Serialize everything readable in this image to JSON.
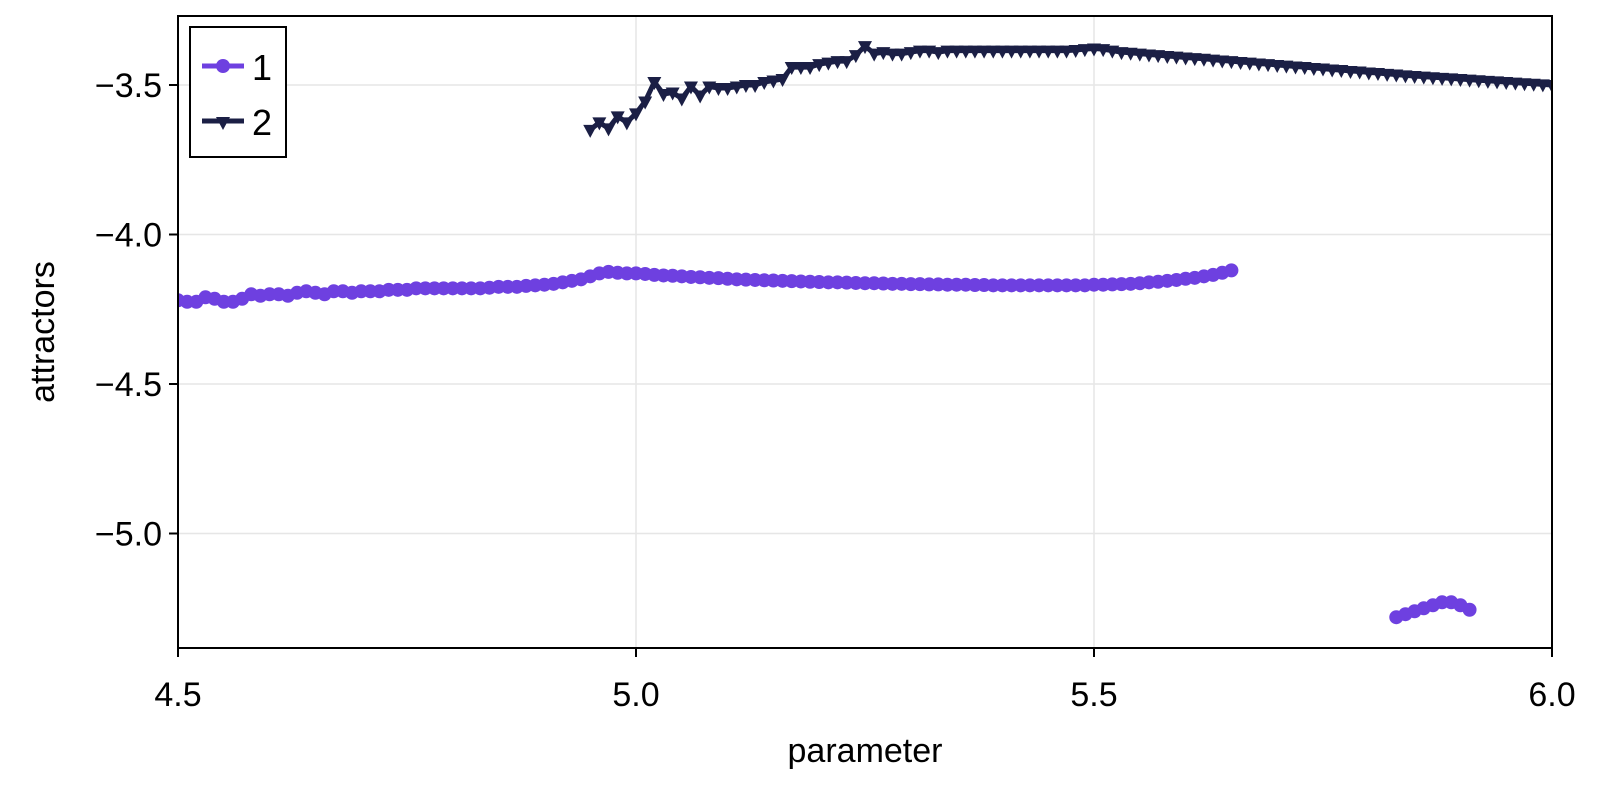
{
  "chart_data": {
    "type": "line",
    "title": "",
    "xlabel": "parameter",
    "ylabel": "attractors",
    "xlim": [
      4.5,
      6.0
    ],
    "ylim": [
      -5.38,
      -3.27
    ],
    "xticks": [
      4.5,
      5.0,
      5.5,
      6.0
    ],
    "xtick_labels": [
      "4.5",
      "5.0",
      "5.5",
      "6.0"
    ],
    "yticks": [
      -3.5,
      -4.0,
      -4.5,
      -5.0
    ],
    "ytick_labels": [
      "−3.5",
      "−4.0",
      "−4.5",
      "−5.0"
    ],
    "grid": true,
    "legend_position": "top-left",
    "series": [
      {
        "name": "1",
        "color": "#6e40e0",
        "marker": "circle",
        "segments": [
          {
            "x": [
              4.5,
              4.51,
              4.52,
              4.53,
              4.54,
              4.55,
              4.56,
              4.57,
              4.58,
              4.59,
              4.6,
              4.61,
              4.62,
              4.63,
              4.64,
              4.65,
              4.66,
              4.67,
              4.68,
              4.69,
              4.7,
              4.71,
              4.72,
              4.73,
              4.74,
              4.75,
              4.76,
              4.77,
              4.78,
              4.79,
              4.8,
              4.81,
              4.82,
              4.83,
              4.84,
              4.85,
              4.86,
              4.87,
              4.88,
              4.89,
              4.9,
              4.91,
              4.92,
              4.93,
              4.94,
              4.95,
              4.96,
              4.97,
              4.98,
              4.99,
              5.0,
              5.01,
              5.02,
              5.03,
              5.04,
              5.05,
              5.06,
              5.07,
              5.08,
              5.09,
              5.1,
              5.11,
              5.12,
              5.13,
              5.14,
              5.15,
              5.16,
              5.17,
              5.18,
              5.19,
              5.2,
              5.21,
              5.22,
              5.23,
              5.24,
              5.25,
              5.26,
              5.27,
              5.28,
              5.29,
              5.3,
              5.31,
              5.32,
              5.33,
              5.34,
              5.35,
              5.36,
              5.37,
              5.38,
              5.39,
              5.4,
              5.41,
              5.42,
              5.43,
              5.44,
              5.45,
              5.46,
              5.47,
              5.48,
              5.49,
              5.5,
              5.51,
              5.52,
              5.53,
              5.54,
              5.55,
              5.56,
              5.57,
              5.58,
              5.59,
              5.6,
              5.61,
              5.62,
              5.63,
              5.64,
              5.65
            ],
            "y": [
              -4.22,
              -4.225,
              -4.225,
              -4.21,
              -4.215,
              -4.225,
              -4.225,
              -4.215,
              -4.2,
              -4.205,
              -4.2,
              -4.2,
              -4.205,
              -4.195,
              -4.19,
              -4.195,
              -4.2,
              -4.19,
              -4.19,
              -4.195,
              -4.19,
              -4.19,
              -4.19,
              -4.185,
              -4.185,
              -4.185,
              -4.18,
              -4.18,
              -4.18,
              -4.18,
              -4.18,
              -4.18,
              -4.18,
              -4.18,
              -4.178,
              -4.175,
              -4.175,
              -4.175,
              -4.172,
              -4.17,
              -4.168,
              -4.165,
              -4.16,
              -4.155,
              -4.15,
              -4.14,
              -4.13,
              -4.125,
              -4.128,
              -4.13,
              -4.13,
              -4.132,
              -4.135,
              -4.137,
              -4.138,
              -4.14,
              -4.142,
              -4.143,
              -4.145,
              -4.146,
              -4.148,
              -4.15,
              -4.151,
              -4.152,
              -4.153,
              -4.154,
              -4.155,
              -4.156,
              -4.157,
              -4.158,
              -4.159,
              -4.16,
              -4.16,
              -4.161,
              -4.162,
              -4.163,
              -4.163,
              -4.164,
              -4.165,
              -4.165,
              -4.166,
              -4.166,
              -4.167,
              -4.167,
              -4.168,
              -4.168,
              -4.168,
              -4.169,
              -4.169,
              -4.17,
              -4.17,
              -4.17,
              -4.17,
              -4.17,
              -4.17,
              -4.17,
              -4.17,
              -4.17,
              -4.17,
              -4.17,
              -4.168,
              -4.168,
              -4.167,
              -4.166,
              -4.165,
              -4.163,
              -4.16,
              -4.158,
              -4.155,
              -4.152,
              -4.148,
              -4.145,
              -4.14,
              -4.135,
              -4.128,
              -4.12
            ]
          },
          {
            "x": [
              5.83,
              5.84,
              5.85,
              5.86,
              5.87,
              5.88,
              5.89,
              5.9,
              5.91
            ],
            "y": [
              -5.28,
              -5.27,
              -5.26,
              -5.25,
              -5.24,
              -5.23,
              -5.23,
              -5.24,
              -5.255
            ]
          }
        ]
      },
      {
        "name": "2",
        "color": "#1b1f45",
        "marker": "triangle-down",
        "segments": [
          {
            "x": [
              4.95,
              4.96,
              4.97,
              4.98,
              4.99,
              5.0,
              5.01,
              5.02,
              5.03,
              5.04,
              5.05,
              5.06,
              5.07,
              5.08,
              5.09,
              5.1,
              5.11,
              5.12,
              5.13,
              5.14,
              5.15,
              5.16,
              5.17,
              5.18,
              5.19,
              5.2,
              5.21,
              5.22,
              5.23,
              5.24,
              5.25,
              5.26,
              5.27,
              5.28,
              5.29,
              5.3,
              5.31,
              5.32,
              5.33,
              5.34,
              5.35,
              5.36,
              5.37,
              5.38,
              5.39,
              5.4,
              5.41,
              5.42,
              5.43,
              5.44,
              5.45,
              5.46,
              5.47,
              5.48,
              5.49,
              5.5,
              5.51,
              5.52,
              5.53,
              5.54,
              5.55,
              5.56,
              5.57,
              5.58,
              5.59,
              5.6,
              5.61,
              5.62,
              5.63,
              5.64,
              5.65,
              5.66,
              5.67,
              5.68,
              5.69,
              5.7,
              5.71,
              5.72,
              5.73,
              5.74,
              5.75,
              5.76,
              5.77,
              5.78,
              5.79,
              5.8,
              5.81,
              5.82,
              5.83,
              5.84,
              5.85,
              5.86,
              5.87,
              5.88,
              5.89,
              5.9,
              5.91,
              5.92,
              5.93,
              5.94,
              5.95,
              5.96,
              5.97,
              5.98,
              5.99,
              6.0
            ],
            "y": [
              -3.65,
              -3.625,
              -3.645,
              -3.605,
              -3.625,
              -3.595,
              -3.555,
              -3.49,
              -3.53,
              -3.525,
              -3.545,
              -3.505,
              -3.535,
              -3.505,
              -3.51,
              -3.51,
              -3.505,
              -3.5,
              -3.5,
              -3.49,
              -3.485,
              -3.48,
              -3.44,
              -3.44,
              -3.44,
              -3.43,
              -3.425,
              -3.42,
              -3.42,
              -3.4,
              -3.37,
              -3.395,
              -3.39,
              -3.395,
              -3.395,
              -3.39,
              -3.385,
              -3.385,
              -3.39,
              -3.385,
              -3.385,
              -3.385,
              -3.385,
              -3.385,
              -3.385,
              -3.385,
              -3.385,
              -3.385,
              -3.385,
              -3.385,
              -3.385,
              -3.385,
              -3.385,
              -3.383,
              -3.38,
              -3.378,
              -3.38,
              -3.385,
              -3.39,
              -3.392,
              -3.395,
              -3.398,
              -3.4,
              -3.403,
              -3.405,
              -3.408,
              -3.41,
              -3.412,
              -3.415,
              -3.418,
              -3.42,
              -3.423,
              -3.425,
              -3.428,
              -3.43,
              -3.433,
              -3.435,
              -3.438,
              -3.44,
              -3.443,
              -3.445,
              -3.448,
              -3.45,
              -3.453,
              -3.455,
              -3.458,
              -3.46,
              -3.463,
              -3.465,
              -3.468,
              -3.47,
              -3.472,
              -3.474,
              -3.476,
              -3.478,
              -3.48,
              -3.482,
              -3.484,
              -3.486,
              -3.488,
              -3.49,
              -3.492,
              -3.494,
              -3.496,
              -3.498,
              -3.5
            ]
          }
        ]
      }
    ]
  },
  "plot": {
    "x_axis_title": "parameter",
    "y_axis_title": "attractors",
    "legend": [
      {
        "label": "1",
        "color": "#6e40e0",
        "marker": "circle"
      },
      {
        "label": "2",
        "color": "#1b1f45",
        "marker": "triangle-down"
      }
    ],
    "colors": {
      "grid": "#e6e6e6",
      "spine": "#000000",
      "background": "#ffffff"
    }
  }
}
